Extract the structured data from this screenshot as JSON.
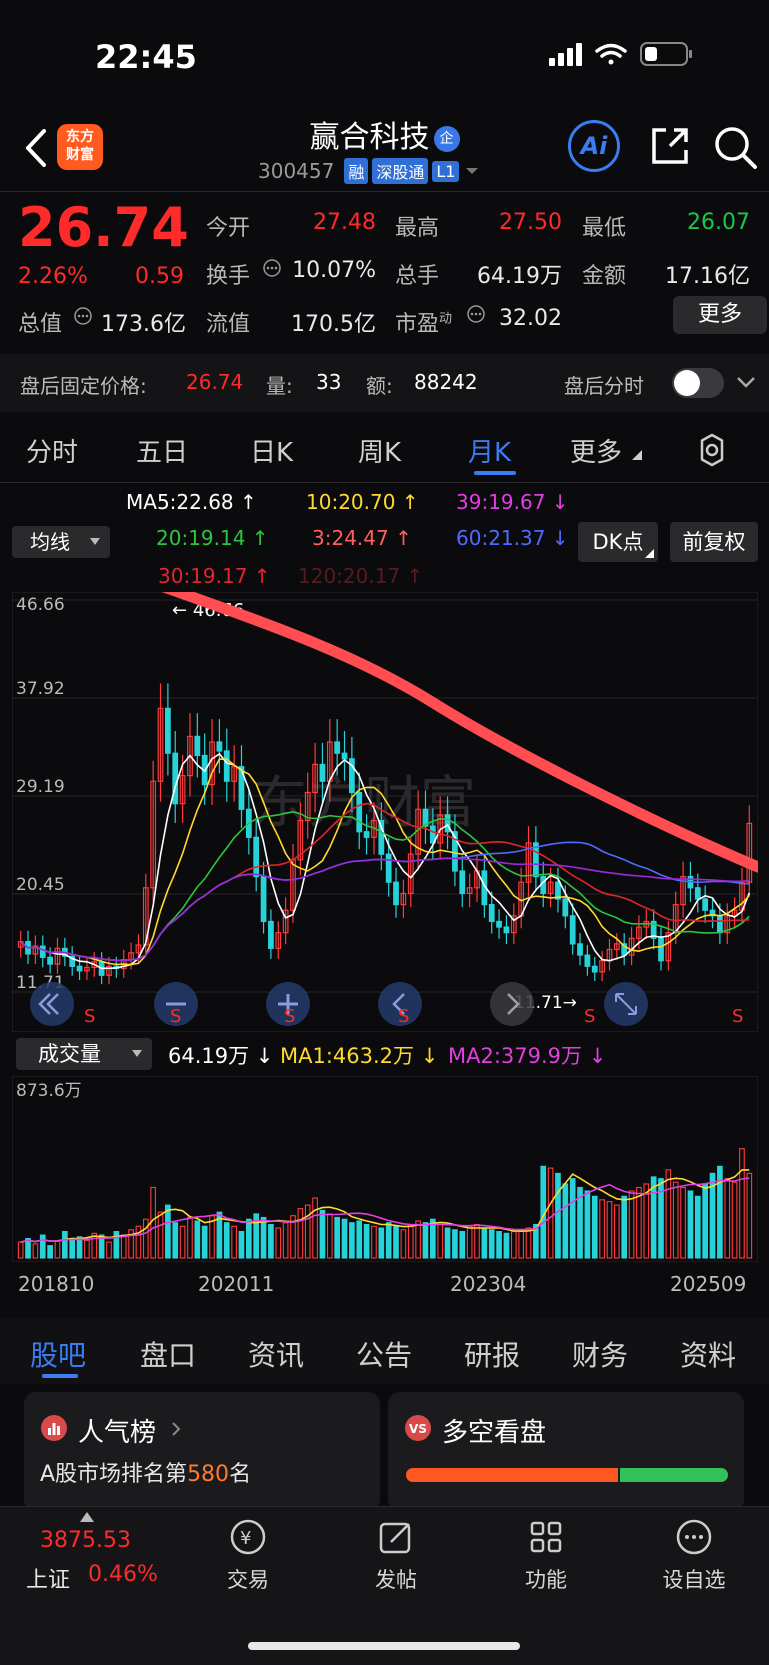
{
  "status": {
    "time": "22:45"
  },
  "header": {
    "logo_text": "东方\n财富",
    "logo_line1": "东方",
    "logo_line2": "财富",
    "stock_name": "赢合科技",
    "stock_tag": "企",
    "code": "300457",
    "badges": [
      "融",
      "深股通",
      "L1"
    ],
    "ai_label": "Ai"
  },
  "quote": {
    "price": "26.74",
    "change_pct": "2.26%",
    "change_amt": "0.59",
    "open_label": "今开",
    "open": "27.48",
    "high_label": "最高",
    "high": "27.50",
    "low_label": "最低",
    "low": "26.07",
    "turnover_label": "换手",
    "turnover": "10.07%",
    "volume_label": "总手",
    "volume": "64.19万",
    "amount_label": "金额",
    "amount": "17.16亿",
    "mktcap_label": "总值",
    "mktcap": "173.6亿",
    "float_label": "流值",
    "float": "170.5亿",
    "pe_label": "市盈",
    "pe_sup": "动",
    "pe": "32.02",
    "more_label": "更多"
  },
  "after_hours": {
    "label": "盘后固定价格:",
    "price": "26.74",
    "vol_label": "量:",
    "vol": "33",
    "amt_label": "额:",
    "amt": "88242",
    "timeshare_label": "盘后分时"
  },
  "period_tabs": [
    "分时",
    "五日",
    "日K",
    "周K",
    "月K",
    "更多"
  ],
  "active_period": "月K",
  "ma_legend": {
    "select_label": "均线",
    "ma5": "MA5:22.68 ↑",
    "ma10": "10:20.70 ↑",
    "ma39": "39:19.67 ↓",
    "ma20": "20:19.14 ↑",
    "ma3": "3:24.47 ↑",
    "ma60": "60:21.37 ↓",
    "ma30": "30:19.17 ↑",
    "ma120": "120:20.17 ↑",
    "dk_label": "DK点",
    "fq_label": "前复权"
  },
  "chart_data": {
    "type": "candlestick",
    "period": "monthly",
    "y_ticks": [
      "46.66",
      "37.92",
      "29.19",
      "20.45",
      "11.71"
    ],
    "ylim": [
      11.71,
      46.66
    ],
    "max_label": "46.66",
    "min_label": "11.71",
    "watermark": "东方财富",
    "x_labels": [
      "201810",
      "202011",
      "202304",
      "202509"
    ],
    "close": [
      16.2,
      15.1,
      15.8,
      14.8,
      14.2,
      15.6,
      14.9,
      14.0,
      13.6,
      13.9,
      14.4,
      13.2,
      14.0,
      13.8,
      14.6,
      15.2,
      15.9,
      21.0,
      30.5,
      37.0,
      33.0,
      28.5,
      31.0,
      34.5,
      32.8,
      30.2,
      34.0,
      33.2,
      30.5,
      31.8,
      28.0,
      25.5,
      22.0,
      18.0,
      15.6,
      17.0,
      19.0,
      23.5,
      27.0,
      29.5,
      32.0,
      30.5,
      34.0,
      33.0,
      32.5,
      29.5,
      26.0,
      25.5,
      27.0,
      24.0,
      21.5,
      19.5,
      20.5,
      24.0,
      28.0,
      26.5,
      25.0,
      27.5,
      26.0,
      22.5,
      20.5,
      21.0,
      22.5,
      19.5,
      18.0,
      17.5,
      17.0,
      18.5,
      21.5,
      25.0,
      22.0,
      20.5,
      21.5,
      20.0,
      18.5,
      16.0,
      15.0,
      14.0,
      13.5,
      14.5,
      15.5,
      16.0,
      15.0,
      16.5,
      17.5,
      18.0,
      16.5,
      14.5,
      17.0,
      19.5,
      22.0,
      21.0,
      20.0,
      19.0,
      18.5,
      17.0,
      18.5,
      19.0,
      21.5,
      26.74
    ],
    "ma_lines": [
      "MA5",
      "MA10",
      "MA20",
      "MA30",
      "MA60",
      "MA120"
    ],
    "volume_legend": {
      "select_label": "成交量",
      "vol": "64.19万 ↓",
      "ma1": "MA1:463.2万 ↓",
      "ma2": "MA2:379.9万 ↓",
      "ymax_label": "873.6万"
    },
    "volume": [
      90,
      110,
      80,
      130,
      70,
      95,
      150,
      110,
      120,
      100,
      140,
      130,
      90,
      150,
      130,
      160,
      180,
      220,
      400,
      260,
      300,
      200,
      180,
      230,
      210,
      180,
      240,
      260,
      200,
      180,
      150,
      220,
      250,
      230,
      190,
      170,
      200,
      240,
      280,
      300,
      340,
      270,
      250,
      230,
      220,
      200,
      210,
      190,
      180,
      170,
      200,
      180,
      160,
      190,
      210,
      200,
      220,
      190,
      170,
      160,
      150,
      180,
      190,
      170,
      160,
      150,
      140,
      150,
      160,
      170,
      190,
      520,
      510,
      480,
      420,
      450,
      400,
      380,
      350,
      330,
      320,
      300,
      350,
      380,
      400,
      420,
      460,
      450,
      500,
      430,
      400,
      380,
      350,
      420,
      480,
      520,
      450,
      430,
      620,
      480
    ]
  },
  "content_tabs": [
    "股吧",
    "盘口",
    "资讯",
    "公告",
    "研报",
    "财务",
    "资料"
  ],
  "active_content_tab": "股吧",
  "cards": {
    "popularity_title": "人气榜",
    "rank_prefix": "A股市场排名第",
    "rank_value": "580",
    "rank_suffix": "名",
    "vs_title": "多空看盘"
  },
  "bottom_nav": {
    "index_value": "3875.53",
    "index_name": "上证",
    "index_pct": "0.46%",
    "items": [
      "交易",
      "发帖",
      "功能",
      "设自选"
    ]
  },
  "colors": {
    "up": "#ff2a2a",
    "down": "#19c84a",
    "accent": "#3b7cf0",
    "trend_line": "#ff4d52"
  }
}
